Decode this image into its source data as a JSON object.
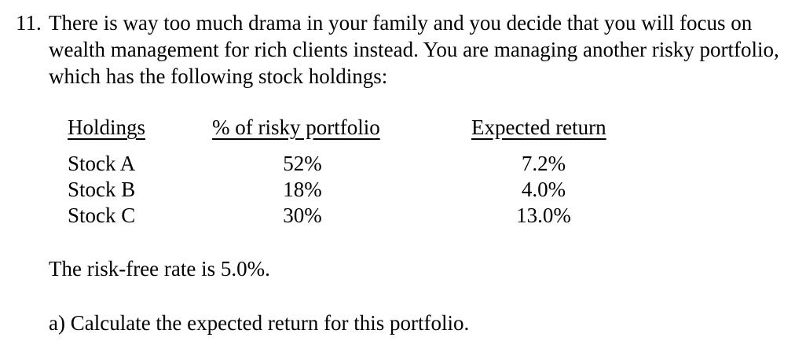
{
  "problem": {
    "number": "11.",
    "text": "There is way too much drama in your family and you decide that you will focus on wealth management for rich clients instead. You are managing another risky portfolio, which has the following stock holdings:"
  },
  "table": {
    "headers": {
      "holdings": "Holdings",
      "percent": "% of risky portfolio",
      "expected_return": "Expected return"
    },
    "rows": [
      {
        "name": "Stock A",
        "percent": "52%",
        "expected_return": "7.2%"
      },
      {
        "name": "Stock B",
        "percent": "18%",
        "expected_return": "4.0%"
      },
      {
        "name": "Stock C",
        "percent": "30%",
        "expected_return": "13.0%"
      }
    ]
  },
  "risk_free_text": "The risk-free rate is 5.0%.",
  "question_a": "a) Calculate the expected return for this portfolio."
}
